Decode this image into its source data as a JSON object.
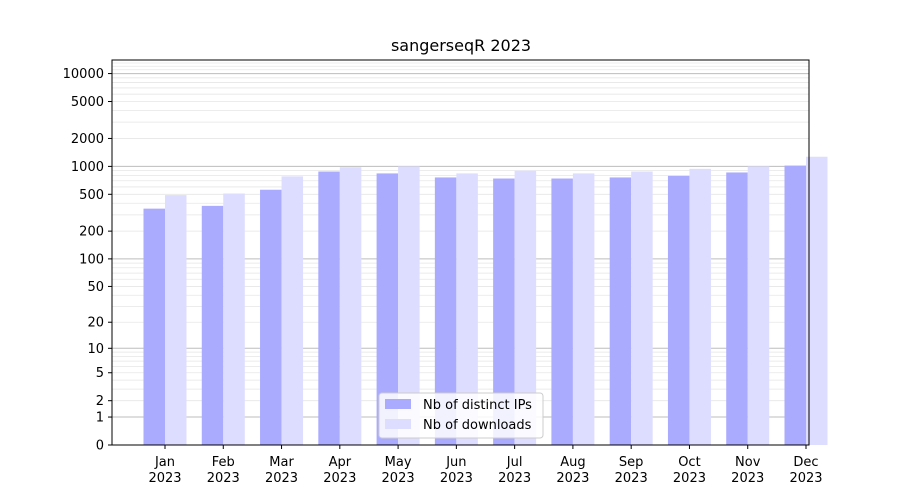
{
  "chart_data": {
    "type": "bar",
    "title": "sangerseqR 2023",
    "xlabel": "",
    "ylabel": "",
    "y_scale": "symlog",
    "ylim": [
      0,
      14000
    ],
    "y_ticks": [
      0,
      1,
      2,
      5,
      10,
      20,
      50,
      100,
      200,
      500,
      1000,
      2000,
      5000,
      10000
    ],
    "grid": "horizontal, major and minor",
    "legend_position": "bottom-center",
    "categories": [
      {
        "month": "Jan",
        "year": "2023"
      },
      {
        "month": "Feb",
        "year": "2023"
      },
      {
        "month": "Mar",
        "year": "2023"
      },
      {
        "month": "Apr",
        "year": "2023"
      },
      {
        "month": "May",
        "year": "2023"
      },
      {
        "month": "Jun",
        "year": "2023"
      },
      {
        "month": "Jul",
        "year": "2023"
      },
      {
        "month": "Aug",
        "year": "2023"
      },
      {
        "month": "Sep",
        "year": "2023"
      },
      {
        "month": "Oct",
        "year": "2023"
      },
      {
        "month": "Nov",
        "year": "2023"
      },
      {
        "month": "Dec",
        "year": "2023"
      }
    ],
    "series": [
      {
        "name": "Nb of distinct IPs",
        "color": "#aaaaff",
        "values": [
          350,
          375,
          560,
          880,
          840,
          760,
          740,
          740,
          760,
          790,
          860,
          1020
        ]
      },
      {
        "name": "Nb of downloads",
        "color": "#ddddff",
        "values": [
          490,
          510,
          780,
          980,
          1000,
          840,
          900,
          840,
          880,
          940,
          1000,
          1270
        ]
      }
    ]
  }
}
